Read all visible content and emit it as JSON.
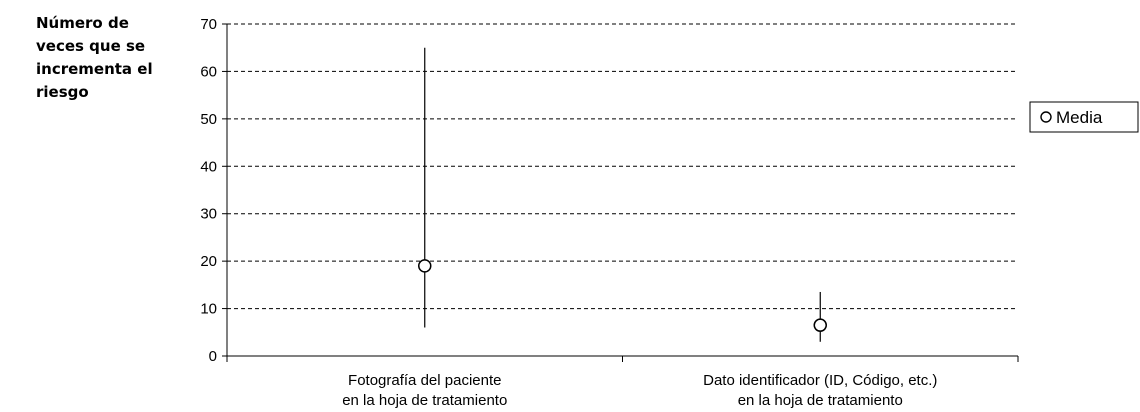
{
  "chart_data": {
    "type": "scatter",
    "ylabel_lines": [
      "Número de",
      "veces que se",
      "incrementa el",
      "riesgo"
    ],
    "xlabel": "",
    "ylim": [
      0,
      70
    ],
    "yticks": [
      "0",
      "10",
      "20",
      "30",
      "40",
      "50",
      "60",
      "70"
    ],
    "grid": "horizontal dashed",
    "categories": [
      {
        "lines": [
          "Fotografía del paciente",
          "en la hoja de tratamiento"
        ]
      },
      {
        "lines": [
          "Dato identificador (ID, Código, etc.)",
          "en la hoja de tratamiento"
        ]
      }
    ],
    "series": [
      {
        "name": "Media",
        "marker": "open-circle",
        "values": [
          19,
          6.5
        ],
        "lower": [
          6,
          3
        ],
        "upper": [
          65,
          13.5
        ]
      }
    ],
    "legend_position": "right",
    "colors": {
      "line": "#000000",
      "grid": "#000000",
      "marker_fill": "#ffffff"
    }
  }
}
